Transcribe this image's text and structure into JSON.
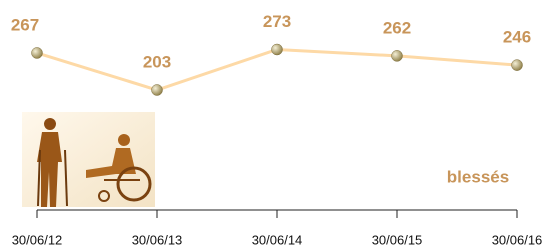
{
  "chart_data": {
    "type": "line",
    "categories": [
      "30/06/12",
      "30/06/13",
      "30/06/14",
      "30/06/15",
      "30/06/16"
    ],
    "series": [
      {
        "name": "blessés",
        "color": "#fdd9a6",
        "values": [
          267,
          203,
          273,
          262,
          246
        ]
      }
    ],
    "marker_color": "#b8a86a",
    "label_color": "#c8955a"
  }
}
